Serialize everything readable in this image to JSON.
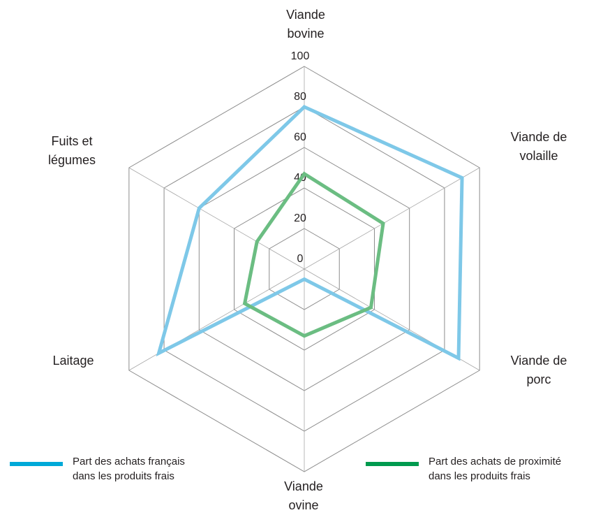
{
  "chart_data": {
    "type": "radar",
    "axes": [
      {
        "label_lines": [
          "Viande",
          "bovine"
        ]
      },
      {
        "label_lines": [
          "Viande de",
          "volaille"
        ]
      },
      {
        "label_lines": [
          "Viande de",
          "porc"
        ]
      },
      {
        "label_lines": [
          "Viande",
          "ovine"
        ]
      },
      {
        "label_lines": [
          "Laitage"
        ]
      },
      {
        "label_lines": [
          "Fuits et",
          "légumes"
        ]
      }
    ],
    "radial_range": [
      0,
      100
    ],
    "radial_ticks": [
      "0",
      "20",
      "40",
      "60",
      "80",
      "100"
    ],
    "series": [
      {
        "name_lines": [
          "Part des achats français",
          "dans les produits frais"
        ],
        "color": "#7ec8e8",
        "values": [
          80,
          90,
          88,
          5,
          83,
          60
        ]
      },
      {
        "name_lines": [
          "Part des achats de proximité",
          "dans les produits frais"
        ],
        "color": "#6bbd82",
        "values": [
          47,
          45,
          38,
          33,
          34,
          27
        ]
      }
    ],
    "legend_swatch_colors": [
      "#00a9d8",
      "#009a4e"
    ],
    "grid": true
  }
}
